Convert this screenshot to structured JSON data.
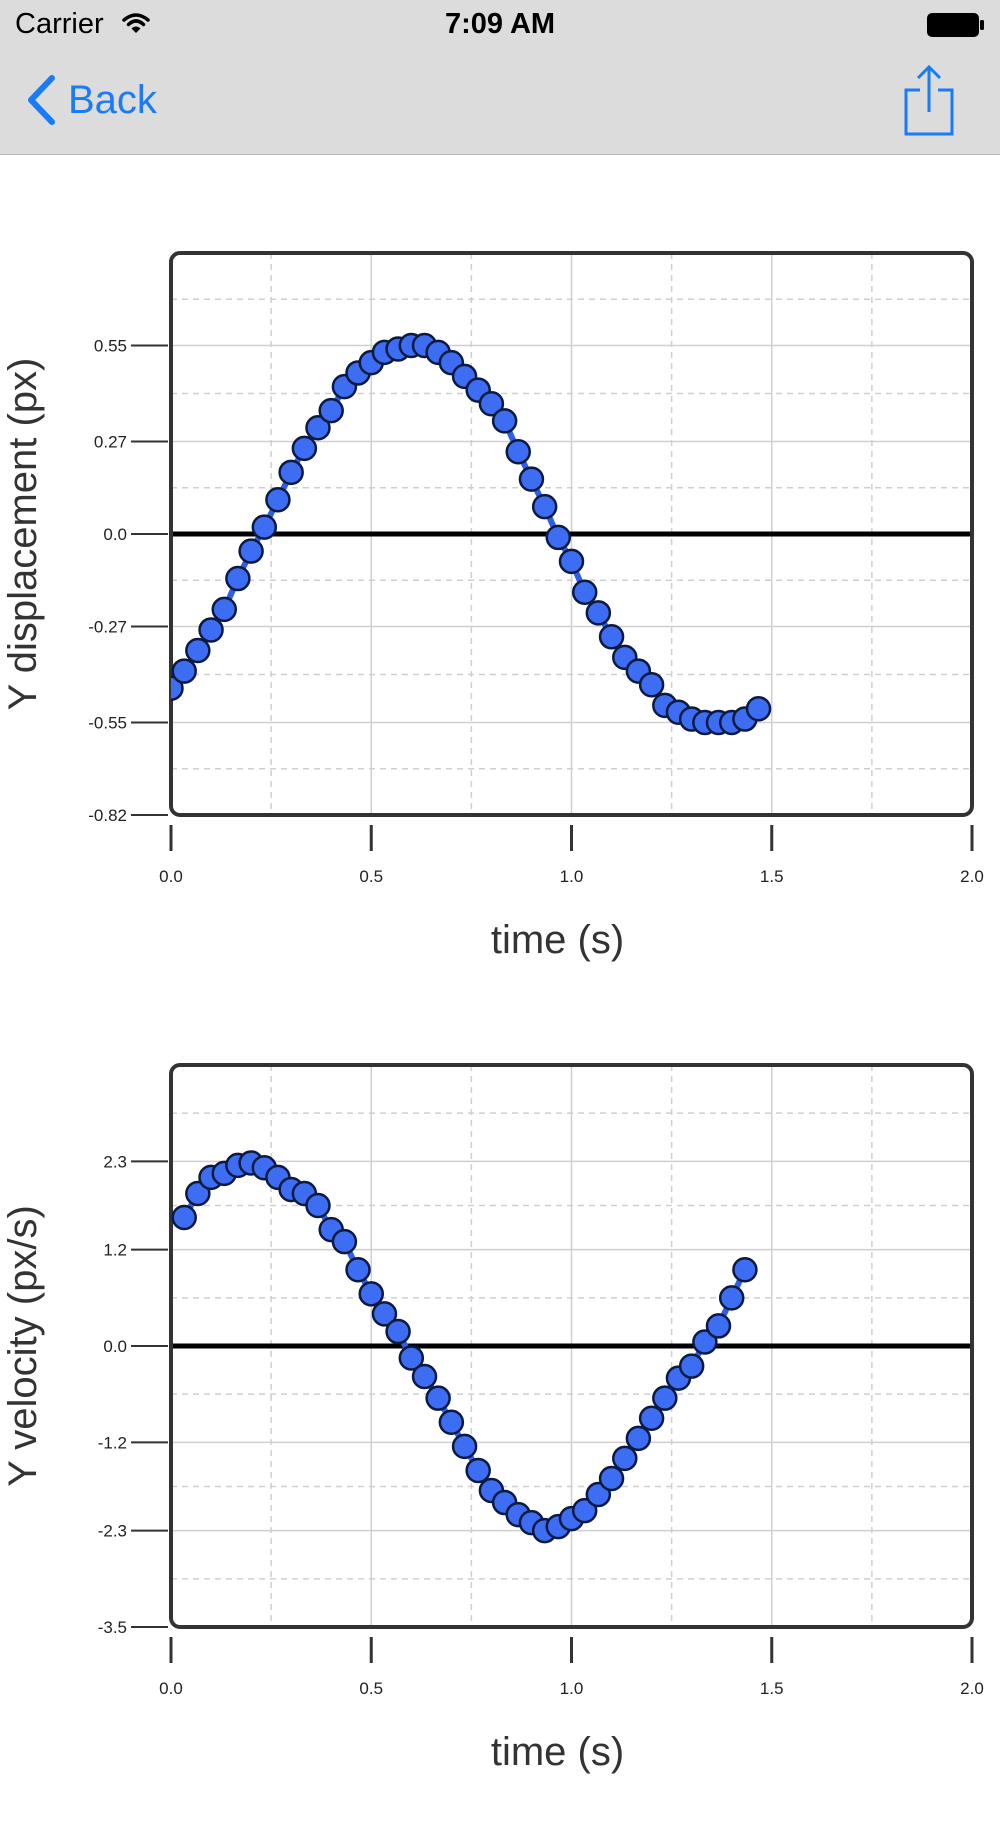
{
  "status_bar": {
    "carrier": "Carrier",
    "time": "7:09 AM",
    "wifi_icon": "wifi-icon",
    "battery_icon": "battery-icon"
  },
  "nav_bar": {
    "back_label": "Back",
    "back_icon": "chevron-left-icon",
    "share_icon": "share-icon"
  },
  "colors": {
    "accent": "#1a7cf5",
    "marker_fill": "#3d6df2",
    "marker_stroke": "#0d1a40",
    "line": "#2f5fe8",
    "zero_line": "#000000",
    "grid_solid": "#cfcfcf",
    "grid_dashed": "#cfcfcf"
  },
  "chart_data": [
    {
      "type": "scatter",
      "title": "",
      "xlabel": "time (s)",
      "ylabel": "Y displacement (px)",
      "xlim": [
        0.0,
        2.0
      ],
      "ylim": [
        -0.82,
        0.82
      ],
      "x_ticks": [
        "0.0",
        "0.5",
        "1.0",
        "1.5",
        "2.0"
      ],
      "y_ticks": [
        "0.55",
        "0.27",
        "0.0",
        "-0.27",
        "-0.55",
        "-0.82"
      ],
      "grid": true,
      "zero_line": true,
      "series": [
        {
          "x": [
            0.0,
            0.033,
            0.067,
            0.1,
            0.133,
            0.167,
            0.2,
            0.233,
            0.267,
            0.3,
            0.333,
            0.367,
            0.4,
            0.433,
            0.467,
            0.5,
            0.533,
            0.567,
            0.6,
            0.633,
            0.667,
            0.7,
            0.733,
            0.767,
            0.8,
            0.833,
            0.867,
            0.9,
            0.933,
            0.967,
            1.0,
            1.033,
            1.067,
            1.1,
            1.133,
            1.167,
            1.2,
            1.233,
            1.267,
            1.3,
            1.333,
            1.367,
            1.4,
            1.433,
            1.467
          ],
          "y": [
            -0.45,
            -0.4,
            -0.34,
            -0.28,
            -0.22,
            -0.13,
            -0.05,
            0.02,
            0.1,
            0.18,
            0.25,
            0.31,
            0.36,
            0.43,
            0.47,
            0.5,
            0.53,
            0.54,
            0.55,
            0.55,
            0.53,
            0.5,
            0.46,
            0.42,
            0.38,
            0.33,
            0.24,
            0.16,
            0.08,
            -0.01,
            -0.08,
            -0.17,
            -0.23,
            -0.3,
            -0.36,
            -0.4,
            -0.44,
            -0.5,
            -0.52,
            -0.54,
            -0.55,
            -0.55,
            -0.55,
            -0.54,
            -0.51
          ]
        }
      ]
    },
    {
      "type": "scatter",
      "title": "",
      "xlabel": "time (s)",
      "ylabel": "Y velocity (px/s)",
      "xlim": [
        0.0,
        2.0
      ],
      "ylim": [
        -3.5,
        3.5
      ],
      "x_ticks": [
        "0.0",
        "0.5",
        "1.0",
        "1.5",
        "2.0"
      ],
      "y_ticks": [
        "2.3",
        "1.2",
        "0.0",
        "-1.2",
        "-2.3",
        "-3.5"
      ],
      "grid": true,
      "zero_line": true,
      "series": [
        {
          "x": [
            0.033,
            0.067,
            0.1,
            0.133,
            0.167,
            0.2,
            0.233,
            0.267,
            0.3,
            0.333,
            0.367,
            0.4,
            0.433,
            0.467,
            0.5,
            0.533,
            0.567,
            0.6,
            0.633,
            0.667,
            0.7,
            0.733,
            0.767,
            0.8,
            0.833,
            0.867,
            0.9,
            0.933,
            0.967,
            1.0,
            1.033,
            1.067,
            1.1,
            1.133,
            1.167,
            1.2,
            1.233,
            1.267,
            1.3,
            1.333,
            1.367,
            1.4,
            1.433
          ],
          "y": [
            1.6,
            1.9,
            2.1,
            2.15,
            2.25,
            2.28,
            2.22,
            2.1,
            1.95,
            1.9,
            1.75,
            1.45,
            1.3,
            0.95,
            0.65,
            0.4,
            0.18,
            -0.15,
            -0.38,
            -0.65,
            -0.95,
            -1.25,
            -1.55,
            -1.8,
            -1.95,
            -2.1,
            -2.2,
            -2.3,
            -2.25,
            -2.15,
            -2.05,
            -1.85,
            -1.65,
            -1.4,
            -1.15,
            -0.9,
            -0.65,
            -0.4,
            -0.25,
            0.05,
            0.25,
            0.6,
            0.95
          ]
        }
      ]
    }
  ]
}
